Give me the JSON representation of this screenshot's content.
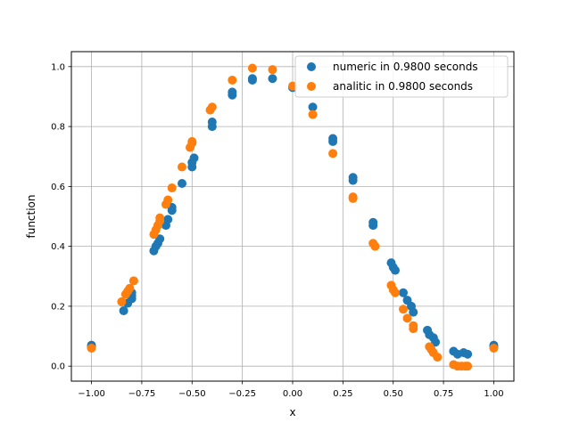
{
  "chart_data": {
    "type": "scatter",
    "title": "",
    "xlabel": "x",
    "ylabel": "function",
    "xlim": [
      -1.1,
      1.1
    ],
    "ylim": [
      -0.05,
      1.05
    ],
    "grid": true,
    "legend_position": "top-right",
    "x_ticks": [
      -1.0,
      -0.75,
      -0.5,
      -0.25,
      0.0,
      0.25,
      0.5,
      0.75,
      1.0
    ],
    "x_tick_labels": [
      "−1.00",
      "−0.75",
      "−0.50",
      "−0.25",
      "0.00",
      "0.25",
      "0.50",
      "0.75",
      "1.00"
    ],
    "y_ticks": [
      0.0,
      0.2,
      0.4,
      0.6,
      0.8,
      1.0
    ],
    "y_tick_labels": [
      "0.0",
      "0.2",
      "0.4",
      "0.6",
      "0.8",
      "1.0"
    ],
    "series": [
      {
        "name": "numeric in 0.9800 seconds",
        "color": "#1f77b4",
        "points": [
          [
            -1.0,
            0.07
          ],
          [
            -1.0,
            0.065
          ],
          [
            -0.84,
            0.185
          ],
          [
            -0.82,
            0.21
          ],
          [
            -0.8,
            0.225
          ],
          [
            -0.8,
            0.235
          ],
          [
            -0.8,
            0.245
          ],
          [
            -0.69,
            0.385
          ],
          [
            -0.68,
            0.4
          ],
          [
            -0.67,
            0.41
          ],
          [
            -0.66,
            0.425
          ],
          [
            -0.63,
            0.47
          ],
          [
            -0.62,
            0.49
          ],
          [
            -0.6,
            0.52
          ],
          [
            -0.6,
            0.53
          ],
          [
            -0.55,
            0.61
          ],
          [
            -0.5,
            0.665
          ],
          [
            -0.5,
            0.68
          ],
          [
            -0.49,
            0.695
          ],
          [
            -0.4,
            0.8
          ],
          [
            -0.4,
            0.815
          ],
          [
            -0.3,
            0.905
          ],
          [
            -0.3,
            0.915
          ],
          [
            -0.2,
            0.955
          ],
          [
            -0.2,
            0.96
          ],
          [
            -0.1,
            0.96
          ],
          [
            0.0,
            0.93
          ],
          [
            0.1,
            0.865
          ],
          [
            0.2,
            0.75
          ],
          [
            0.2,
            0.76
          ],
          [
            0.3,
            0.62
          ],
          [
            0.3,
            0.63
          ],
          [
            0.4,
            0.47
          ],
          [
            0.4,
            0.48
          ],
          [
            0.49,
            0.345
          ],
          [
            0.5,
            0.33
          ],
          [
            0.51,
            0.32
          ],
          [
            0.55,
            0.245
          ],
          [
            0.57,
            0.22
          ],
          [
            0.59,
            0.2
          ],
          [
            0.6,
            0.18
          ],
          [
            0.67,
            0.12
          ],
          [
            0.68,
            0.105
          ],
          [
            0.7,
            0.095
          ],
          [
            0.71,
            0.08
          ],
          [
            0.8,
            0.05
          ],
          [
            0.82,
            0.04
          ],
          [
            0.85,
            0.045
          ],
          [
            0.87,
            0.04
          ],
          [
            1.0,
            0.07
          ],
          [
            1.0,
            0.065
          ]
        ]
      },
      {
        "name": "analitic in 0.9800 seconds",
        "color": "#ff7f0e",
        "points": [
          [
            -1.0,
            0.06
          ],
          [
            -0.85,
            0.215
          ],
          [
            -0.83,
            0.24
          ],
          [
            -0.82,
            0.25
          ],
          [
            -0.81,
            0.26
          ],
          [
            -0.79,
            0.285
          ],
          [
            -0.69,
            0.44
          ],
          [
            -0.68,
            0.455
          ],
          [
            -0.67,
            0.47
          ],
          [
            -0.66,
            0.485
          ],
          [
            -0.66,
            0.495
          ],
          [
            -0.63,
            0.54
          ],
          [
            -0.62,
            0.555
          ],
          [
            -0.6,
            0.595
          ],
          [
            -0.55,
            0.665
          ],
          [
            -0.51,
            0.73
          ],
          [
            -0.5,
            0.745
          ],
          [
            -0.5,
            0.75
          ],
          [
            -0.41,
            0.855
          ],
          [
            -0.4,
            0.865
          ],
          [
            -0.3,
            0.955
          ],
          [
            -0.2,
            0.995
          ],
          [
            -0.1,
            0.99
          ],
          [
            0.0,
            0.935
          ],
          [
            0.1,
            0.84
          ],
          [
            0.2,
            0.71
          ],
          [
            0.3,
            0.56
          ],
          [
            0.3,
            0.565
          ],
          [
            0.4,
            0.41
          ],
          [
            0.41,
            0.4
          ],
          [
            0.49,
            0.27
          ],
          [
            0.5,
            0.255
          ],
          [
            0.51,
            0.245
          ],
          [
            0.55,
            0.19
          ],
          [
            0.57,
            0.16
          ],
          [
            0.6,
            0.135
          ],
          [
            0.6,
            0.125
          ],
          [
            0.68,
            0.065
          ],
          [
            0.69,
            0.055
          ],
          [
            0.7,
            0.045
          ],
          [
            0.72,
            0.03
          ],
          [
            0.8,
            0.005
          ],
          [
            0.82,
            0.0
          ],
          [
            0.84,
            0.0
          ],
          [
            0.86,
            0.0
          ],
          [
            0.87,
            0.0
          ],
          [
            1.0,
            0.06
          ]
        ]
      }
    ]
  }
}
